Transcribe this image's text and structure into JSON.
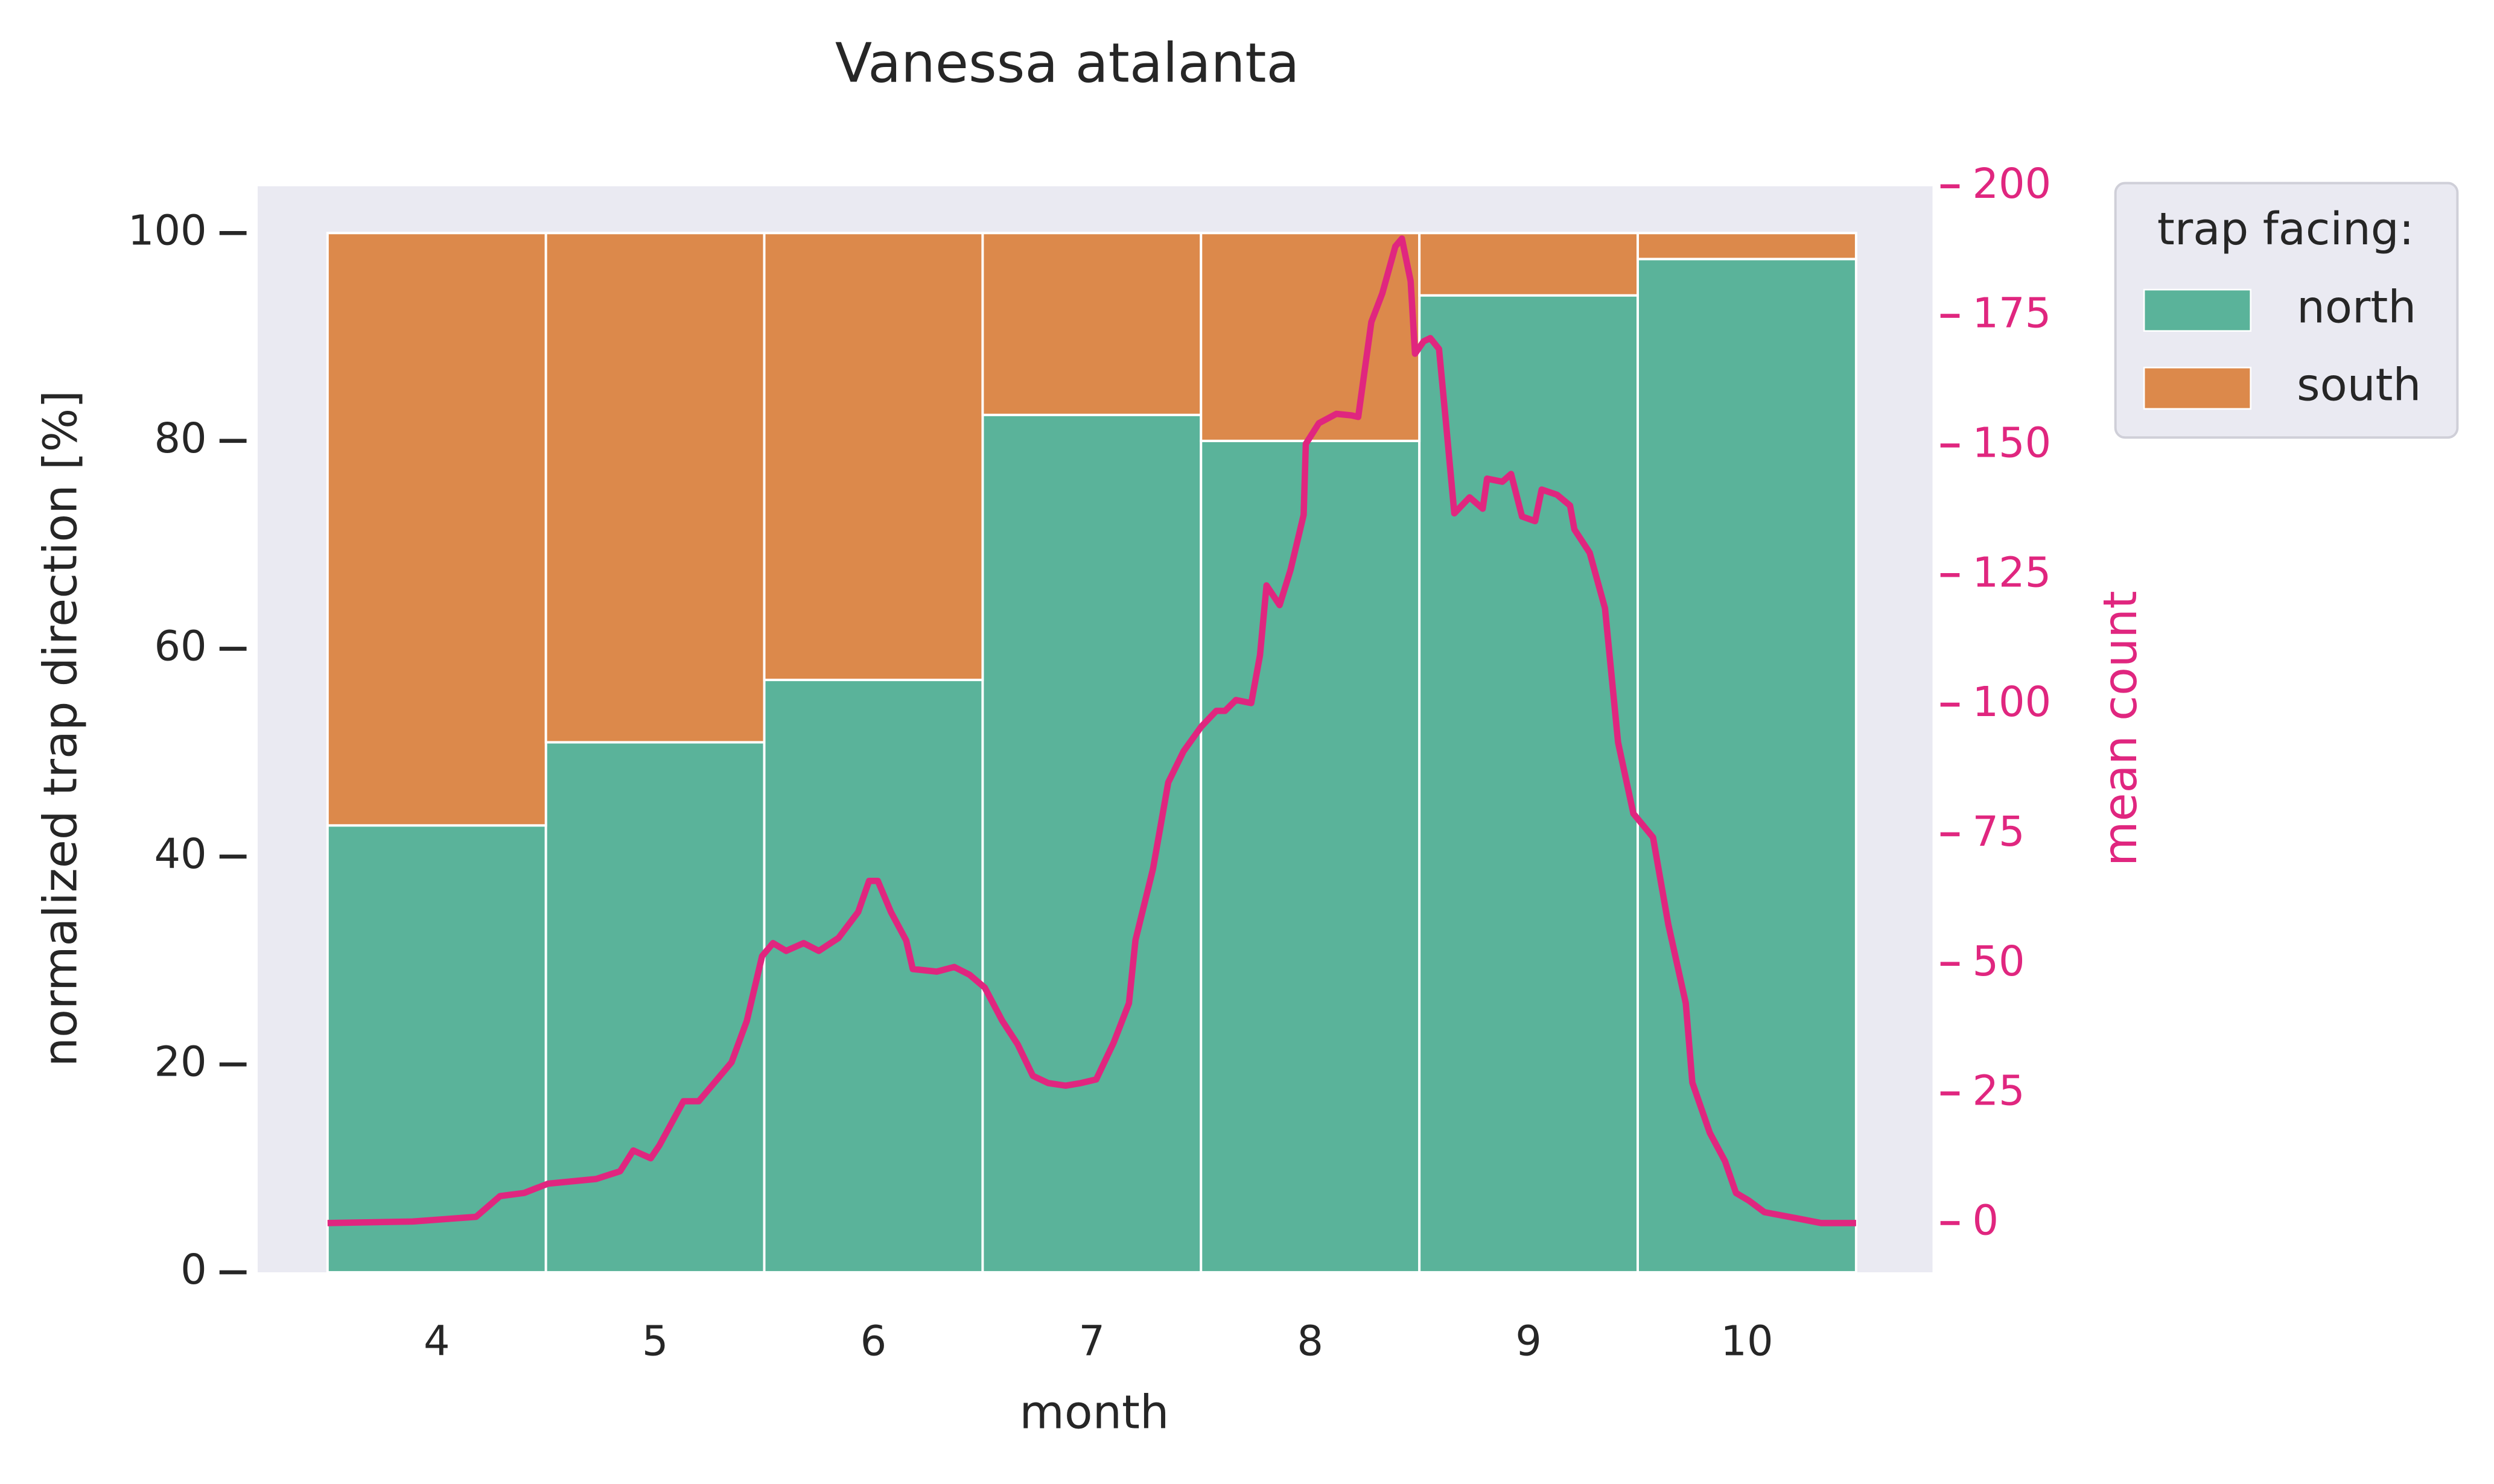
{
  "chart_data": {
    "type": "bar",
    "stacked": true,
    "title": "Vanessa atalanta",
    "x_label": "month",
    "y_label": "normalized trap direction [%]",
    "y2_label": "mean count",
    "legend_title": "trap facing:",
    "legend_position": "outside right",
    "background": "#eaeaf2",
    "x": [
      4,
      5,
      6,
      7,
      8,
      9,
      10
    ],
    "xlim": [
      3.18,
      10.85
    ],
    "xticks": [
      4,
      5,
      6,
      7,
      8,
      9,
      10
    ],
    "ylim": [
      0,
      104.5
    ],
    "yticks": [
      0,
      20,
      40,
      60,
      80,
      100
    ],
    "y2lim": [
      -9.5,
      200
    ],
    "y2ticks": [
      0,
      25,
      50,
      75,
      100,
      125,
      150,
      175,
      200
    ],
    "y2_color": "#e0267f",
    "series": [
      {
        "name": "north",
        "color": "#5ab39a",
        "values": [
          43,
          51,
          57,
          82.5,
          80,
          94,
          97.5
        ]
      },
      {
        "name": "south",
        "color": "#dc894b",
        "values": [
          57,
          49,
          43,
          17.5,
          20,
          6,
          2.5
        ]
      },
      {
        "type": "line",
        "axis": "y2",
        "color": "#e0267f",
        "x": [
          3.5,
          3.89,
          4.18,
          4.29,
          4.4,
          4.51,
          4.73,
          4.84,
          4.9,
          4.98,
          5.02,
          5.13,
          5.2,
          5.27,
          5.35,
          5.42,
          5.49,
          5.54,
          5.6,
          5.68,
          5.75,
          5.84,
          5.93,
          5.98,
          6.02,
          6.08,
          6.15,
          6.18,
          6.29,
          6.37,
          6.44,
          6.51,
          6.59,
          6.66,
          6.73,
          6.8,
          6.88,
          6.95,
          7.02,
          7.1,
          7.17,
          7.2,
          7.28,
          7.35,
          7.42,
          7.5,
          7.57,
          7.61,
          7.66,
          7.73,
          7.77,
          7.8,
          7.86,
          7.91,
          7.97,
          7.98,
          8.04,
          8.12,
          8.19,
          8.22,
          8.28,
          8.33,
          8.39,
          8.42,
          8.46,
          8.48,
          8.52,
          8.55,
          8.59,
          8.62,
          8.66,
          8.73,
          8.79,
          8.81,
          8.88,
          8.92,
          8.97,
          9.03,
          9.06,
          9.13,
          9.19,
          9.21,
          9.28,
          9.35,
          9.41,
          9.48,
          9.57,
          9.64,
          9.72,
          9.75,
          9.83,
          9.9,
          9.95,
          10.01,
          10.08,
          10.23,
          10.34,
          10.5
        ],
        "values": [
          0,
          0.3,
          1.2,
          5.2,
          5.8,
          7.6,
          8.5,
          10,
          14,
          12.5,
          15,
          23.5,
          23.5,
          27,
          31,
          39,
          51.5,
          54,
          52.5,
          54,
          52.5,
          55,
          60,
          66,
          66,
          60,
          54.5,
          49,
          48.5,
          49.4,
          47.9,
          45.4,
          39,
          34.5,
          28.4,
          27,
          26.5,
          27,
          27.7,
          34.8,
          42.4,
          54.6,
          68.3,
          85,
          91,
          95.7,
          98.8,
          98.8,
          100.9,
          100.3,
          109.5,
          123,
          119.2,
          126,
          136.6,
          150.3,
          154.3,
          156.1,
          155.8,
          155.5,
          173.8,
          179.3,
          188.4,
          189.9,
          181.7,
          167.7,
          170.1,
          170.7,
          168.6,
          155.2,
          136.9,
          140,
          137.8,
          143.6,
          143,
          144.5,
          136.3,
          135.4,
          141.5,
          140.5,
          138.4,
          133.8,
          129.3,
          118.6,
          92.7,
          79,
          74.4,
          57.6,
          42.4,
          27.1,
          17.4,
          11.9,
          5.8,
          4.3,
          2.1,
          0.9,
          0,
          0
        ]
      }
    ]
  }
}
